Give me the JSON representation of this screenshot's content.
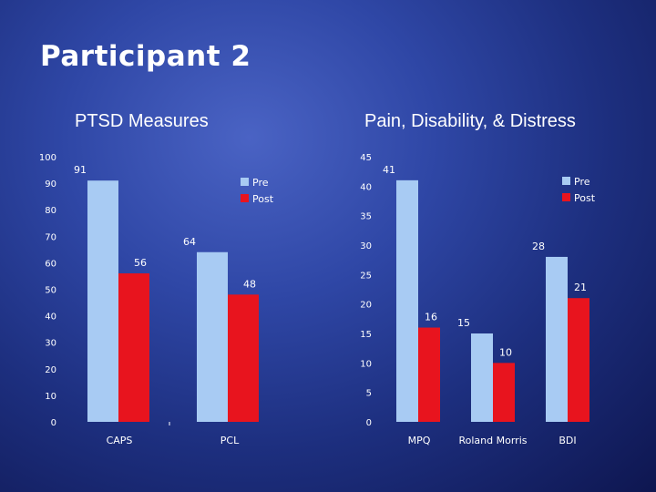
{
  "slide": {
    "title": "Participant 2"
  },
  "chart_data": [
    {
      "type": "bar",
      "title": "PTSD Measures",
      "categories": [
        "CAPS",
        "PCL"
      ],
      "series": [
        {
          "name": "Pre",
          "values": [
            91,
            64
          ],
          "color": "#a8cbf3"
        },
        {
          "name": "Post",
          "values": [
            56,
            48
          ],
          "color": "#e8141e"
        }
      ],
      "ylim": [
        0,
        100
      ],
      "yticks": [
        "0",
        "10",
        "20",
        "30",
        "40",
        "50",
        "60",
        "70",
        "80",
        "90",
        "100"
      ],
      "legend": "top-right"
    },
    {
      "type": "bar",
      "title": "Pain, Disability, & Distress",
      "categories": [
        "MPQ",
        "Roland Morris",
        "BDI"
      ],
      "series": [
        {
          "name": "Pre",
          "values": [
            41,
            15,
            28
          ],
          "color": "#a8cbf3"
        },
        {
          "name": "Post",
          "values": [
            16,
            10,
            21
          ],
          "color": "#e8141e"
        }
      ],
      "ylim": [
        0,
        45
      ],
      "yticks": [
        "0",
        "5",
        "10",
        "15",
        "20",
        "25",
        "30",
        "35",
        "40",
        "45"
      ],
      "legend": "top-right"
    }
  ]
}
